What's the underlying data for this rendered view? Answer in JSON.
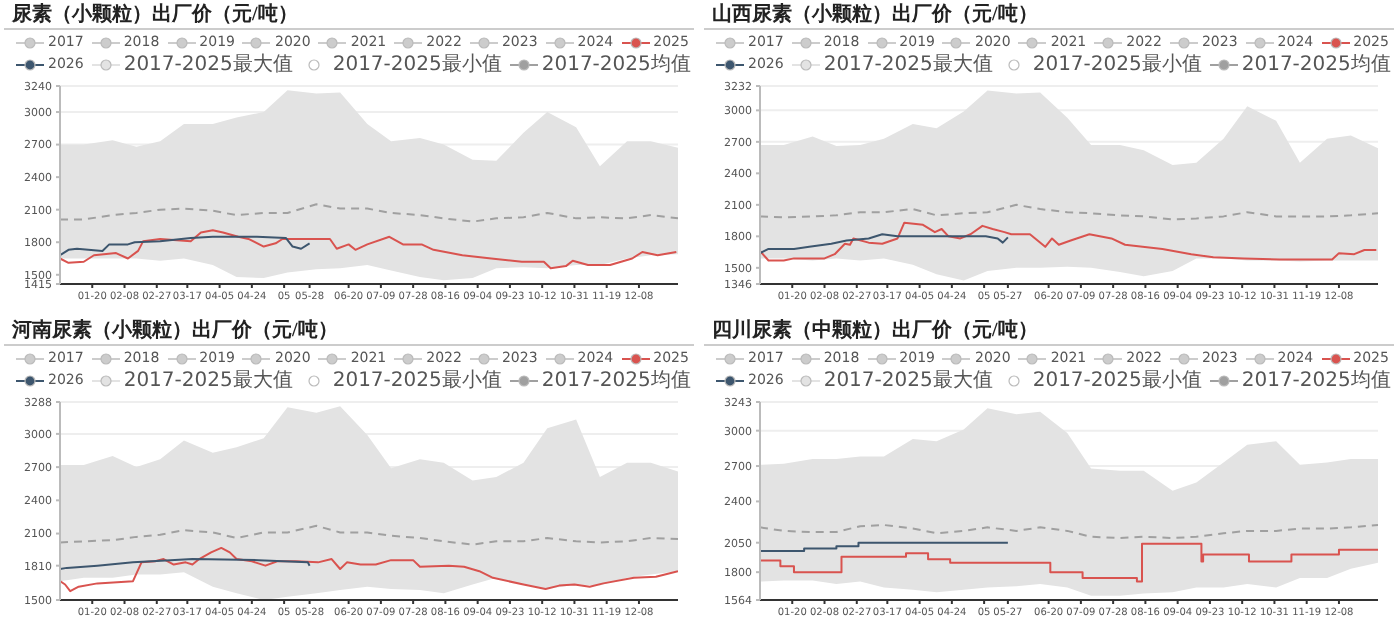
{
  "chart_data": [
    {
      "type": "line",
      "title": "尿素（小颗粒）出厂价（元/吨）",
      "legend": "top left",
      "grid": "y",
      "xlim": [
        "--01-01",
        "--12-31"
      ],
      "ylim": [
        1415,
        3240
      ],
      "yticks": [
        1415,
        1500,
        1800,
        2100,
        2400,
        2700,
        3000,
        3240
      ],
      "xticks": [
        {
          "value": "--01-20",
          "label": "01-20"
        },
        {
          "value": "--02-08",
          "label": "02-08"
        },
        {
          "value": "--02-27",
          "label": "02-27"
        },
        {
          "value": "--03-17",
          "label": "03-17"
        },
        {
          "value": "--04-05",
          "label": "04-05"
        },
        {
          "value": "--04-24",
          "label": "04-24"
        },
        {
          "value": "--05-13",
          "label": "05"
        },
        {
          "value": "--05-28",
          "label": "05-28"
        },
        {
          "value": "--06-20",
          "label": "06-20"
        },
        {
          "value": "--07-09",
          "label": "07-09"
        },
        {
          "value": "--07-28",
          "label": "07-28"
        },
        {
          "value": "--08-16",
          "label": "08-16"
        },
        {
          "value": "--09-04",
          "label": "09-04"
        },
        {
          "value": "--09-23",
          "label": "09-23"
        },
        {
          "value": "--10-12",
          "label": "10-12"
        },
        {
          "value": "--10-31",
          "label": "10-31"
        },
        {
          "value": "--11-19",
          "label": "11-19"
        },
        {
          "value": "--12-08",
          "label": "12-08"
        }
      ],
      "series": [
        {
          "name": "2017",
          "color": "#cccccc"
        },
        {
          "name": "2018",
          "color": "#cccccc"
        },
        {
          "name": "2019",
          "color": "#cccccc"
        },
        {
          "name": "2020",
          "color": "#cccccc"
        },
        {
          "name": "2021",
          "color": "#cccccc"
        },
        {
          "name": "2022",
          "color": "#cccccc"
        },
        {
          "name": "2023",
          "color": "#cccccc"
        },
        {
          "name": "2024",
          "color": "#cccccc"
        },
        {
          "name": "2025",
          "color": "#d9534f",
          "x": [
            "--01-01",
            "--01-06",
            "--01-15",
            "--01-21",
            "--02-03",
            "--02-10",
            "--02-16",
            "--02-19",
            "--03-01",
            "--03-19",
            "--03-25",
            "--04-01",
            "--04-07",
            "--04-16",
            "--04-22",
            "--05-01",
            "--05-08",
            "--05-12",
            "--06-09",
            "--06-13",
            "--06-20",
            "--06-24",
            "--07-01",
            "--07-14",
            "--07-22",
            "--08-02",
            "--08-09",
            "--08-26",
            "--09-12",
            "--09-30",
            "--10-13",
            "--10-17",
            "--10-26",
            "--10-30",
            "--11-08",
            "--11-21",
            "--12-04",
            "--12-10",
            "--12-19",
            "--12-30"
          ],
          "values": [
            1650,
            1610,
            1620,
            1680,
            1700,
            1650,
            1720,
            1810,
            1830,
            1810,
            1890,
            1910,
            1890,
            1850,
            1830,
            1760,
            1790,
            1830,
            1830,
            1740,
            1780,
            1730,
            1780,
            1850,
            1780,
            1780,
            1730,
            1680,
            1650,
            1620,
            1620,
            1560,
            1580,
            1630,
            1590,
            1590,
            1650,
            1710,
            1680,
            1710
          ]
        },
        {
          "name": "2026",
          "color": "#3d566e",
          "x": [
            "--01-01",
            "--01-06",
            "--01-11",
            "--01-26",
            "--01-30",
            "--02-10",
            "--02-14",
            "--03-01",
            "--03-19",
            "--04-01",
            "--04-27",
            "--05-14",
            "--05-18",
            "--05-23",
            "--05-28"
          ],
          "values": [
            1680,
            1730,
            1740,
            1720,
            1780,
            1780,
            1800,
            1810,
            1840,
            1850,
            1850,
            1840,
            1760,
            1740,
            1790
          ]
        },
        {
          "name": "2017-2025最大值",
          "type": "area",
          "color": "#e3e3e3",
          "x": [
            "--01-01",
            "--01-15",
            "--02-01",
            "--02-15",
            "--03-01",
            "--03-15",
            "--04-01",
            "--04-15",
            "--05-01",
            "--05-15",
            "--06-01",
            "--06-15",
            "--07-01",
            "--07-15",
            "--08-01",
            "--08-15",
            "--09-01",
            "--09-15",
            "--10-01",
            "--10-15",
            "--11-01",
            "--11-15",
            "--12-01",
            "--12-15",
            "--12-31"
          ],
          "values": [
            2700,
            2700,
            2740,
            2680,
            2730,
            2890,
            2890,
            2950,
            3000,
            3200,
            3170,
            3180,
            2890,
            2730,
            2760,
            2700,
            2560,
            2550,
            2810,
            3000,
            2860,
            2500,
            2730,
            2730,
            2670
          ]
        },
        {
          "name": "2017-2025最小值",
          "type": "area",
          "color": "#ffffff",
          "x": [
            "--01-01",
            "--01-15",
            "--02-01",
            "--02-15",
            "--03-01",
            "--03-15",
            "--04-01",
            "--04-15",
            "--05-01",
            "--05-15",
            "--06-01",
            "--06-15",
            "--07-01",
            "--07-15",
            "--08-01",
            "--08-15",
            "--09-01",
            "--09-15",
            "--10-01",
            "--10-15",
            "--11-01",
            "--11-15",
            "--12-01",
            "--12-15",
            "--12-31"
          ],
          "values": [
            1650,
            1650,
            1650,
            1650,
            1630,
            1650,
            1590,
            1480,
            1470,
            1520,
            1550,
            1560,
            1590,
            1540,
            1480,
            1450,
            1470,
            1560,
            1570,
            1560,
            1590,
            1590,
            1650,
            1680,
            1690
          ]
        },
        {
          "name": "2017-2025均值",
          "color": "#a0a0a0",
          "line_style": "dashed",
          "x": [
            "--01-01",
            "--01-15",
            "--02-01",
            "--02-15",
            "--03-01",
            "--03-15",
            "--04-01",
            "--04-15",
            "--05-01",
            "--05-15",
            "--06-01",
            "--06-15",
            "--07-01",
            "--07-15",
            "--08-01",
            "--08-15",
            "--09-01",
            "--09-15",
            "--10-01",
            "--10-15",
            "--11-01",
            "--11-15",
            "--12-01",
            "--12-15",
            "--12-31"
          ],
          "values": [
            2010,
            2010,
            2050,
            2070,
            2100,
            2110,
            2090,
            2050,
            2070,
            2070,
            2150,
            2110,
            2110,
            2070,
            2050,
            2020,
            1990,
            2020,
            2030,
            2070,
            2020,
            2030,
            2020,
            2050,
            2020
          ]
        }
      ]
    },
    {
      "type": "line",
      "title": "山西尿素（小颗粒）出厂价（元/吨）",
      "legend": "top left",
      "grid": "y",
      "xlim": [
        "--01-01",
        "--12-31"
      ],
      "ylim": [
        1346,
        3232
      ],
      "yticks": [
        1346,
        1500,
        1800,
        2100,
        2400,
        2700,
        3000,
        3232
      ],
      "xticks": [
        {
          "value": "--01-20",
          "label": "01-20"
        },
        {
          "value": "--02-08",
          "label": "02-08"
        },
        {
          "value": "--02-27",
          "label": "02-27"
        },
        {
          "value": "--03-17",
          "label": "03-17"
        },
        {
          "value": "--04-05",
          "label": "04-05"
        },
        {
          "value": "--04-24",
          "label": "04-24"
        },
        {
          "value": "--05-13",
          "label": "05"
        },
        {
          "value": "--05-27",
          "label": "05-27"
        },
        {
          "value": "--06-20",
          "label": "06-20"
        },
        {
          "value": "--07-09",
          "label": "07-09"
        },
        {
          "value": "--07-28",
          "label": "07-28"
        },
        {
          "value": "--08-16",
          "label": "08-16"
        },
        {
          "value": "--09-04",
          "label": "09-04"
        },
        {
          "value": "--09-23",
          "label": "09-23"
        },
        {
          "value": "--10-12",
          "label": "10-12"
        },
        {
          "value": "--10-31",
          "label": "10-31"
        },
        {
          "value": "--11-19",
          "label": "11-19"
        },
        {
          "value": "--12-08",
          "label": "12-08"
        }
      ],
      "series": [
        {
          "name": "2017",
          "color": "#cccccc"
        },
        {
          "name": "2018",
          "color": "#cccccc"
        },
        {
          "name": "2019",
          "color": "#cccccc"
        },
        {
          "name": "2020",
          "color": "#cccccc"
        },
        {
          "name": "2021",
          "color": "#cccccc"
        },
        {
          "name": "2022",
          "color": "#cccccc"
        },
        {
          "name": "2023",
          "color": "#cccccc"
        },
        {
          "name": "2024",
          "color": "#cccccc"
        },
        {
          "name": "2025",
          "color": "#d9534f",
          "x": [
            "--01-01",
            "--01-06",
            "--01-15",
            "--01-21",
            "--02-08",
            "--02-14",
            "--02-20",
            "--02-23",
            "--02-25",
            "--03-06",
            "--03-14",
            "--03-23",
            "--03-27",
            "--04-07",
            "--04-14",
            "--04-18",
            "--04-22",
            "--04-29",
            "--05-05",
            "--05-12",
            "--05-18",
            "--05-25",
            "--05-29",
            "--06-09",
            "--06-18",
            "--06-22",
            "--06-26",
            "--07-03",
            "--07-14",
            "--07-27",
            "--08-04",
            "--08-26",
            "--09-12",
            "--09-25",
            "--10-13",
            "--11-03",
            "--12-04",
            "--12-08",
            "--12-17",
            "--12-23",
            "--12-30"
          ],
          "values": [
            1660,
            1570,
            1570,
            1590,
            1590,
            1630,
            1730,
            1720,
            1780,
            1740,
            1730,
            1780,
            1930,
            1910,
            1840,
            1870,
            1800,
            1780,
            1820,
            1900,
            1870,
            1840,
            1820,
            1820,
            1700,
            1780,
            1720,
            1760,
            1820,
            1780,
            1720,
            1680,
            1630,
            1600,
            1590,
            1580,
            1580,
            1640,
            1630,
            1670,
            1670
          ]
        },
        {
          "name": "2026",
          "color": "#3d566e",
          "x": [
            "--01-01",
            "--01-06",
            "--01-21",
            "--01-30",
            "--02-12",
            "--02-21",
            "--03-06",
            "--03-14",
            "--03-23",
            "--04-09",
            "--05-14",
            "--05-21",
            "--05-24",
            "--05-27"
          ],
          "values": [
            1640,
            1680,
            1680,
            1700,
            1730,
            1760,
            1780,
            1820,
            1800,
            1800,
            1800,
            1780,
            1740,
            1790
          ]
        },
        {
          "name": "2017-2025最大值",
          "type": "area",
          "color": "#e3e3e3",
          "x": [
            "--01-01",
            "--01-15",
            "--02-01",
            "--02-15",
            "--03-01",
            "--03-15",
            "--04-01",
            "--04-15",
            "--05-01",
            "--05-15",
            "--06-01",
            "--06-15",
            "--07-01",
            "--07-15",
            "--08-01",
            "--08-15",
            "--09-01",
            "--09-15",
            "--10-01",
            "--10-15",
            "--11-01",
            "--11-15",
            "--12-01",
            "--12-15",
            "--12-31"
          ],
          "values": [
            2670,
            2670,
            2750,
            2660,
            2670,
            2730,
            2870,
            2830,
            2990,
            3190,
            3160,
            3170,
            2930,
            2670,
            2670,
            2620,
            2480,
            2500,
            2730,
            3040,
            2900,
            2500,
            2730,
            2760,
            2640
          ]
        },
        {
          "name": "2017-2025最小值",
          "type": "area",
          "color": "#ffffff",
          "x": [
            "--01-01",
            "--01-15",
            "--02-01",
            "--02-15",
            "--03-01",
            "--03-15",
            "--04-01",
            "--04-15",
            "--05-01",
            "--05-15",
            "--06-01",
            "--06-15",
            "--07-01",
            "--07-15",
            "--08-01",
            "--08-15",
            "--09-01",
            "--09-15",
            "--10-01",
            "--10-15",
            "--11-01",
            "--11-15",
            "--12-01",
            "--12-15",
            "--12-31"
          ],
          "values": [
            1590,
            1590,
            1570,
            1590,
            1570,
            1590,
            1530,
            1440,
            1380,
            1470,
            1500,
            1500,
            1510,
            1500,
            1460,
            1420,
            1470,
            1590,
            1590,
            1570,
            1570,
            1560,
            1570,
            1570,
            1570
          ]
        },
        {
          "name": "2017-2025均值",
          "color": "#a0a0a0",
          "line_style": "dashed",
          "x": [
            "--01-01",
            "--01-15",
            "--02-01",
            "--02-15",
            "--03-01",
            "--03-15",
            "--04-01",
            "--04-15",
            "--05-01",
            "--05-15",
            "--06-01",
            "--06-15",
            "--07-01",
            "--07-15",
            "--08-01",
            "--08-15",
            "--09-01",
            "--09-15",
            "--10-01",
            "--10-15",
            "--11-01",
            "--11-15",
            "--12-01",
            "--12-15",
            "--12-31"
          ],
          "values": [
            1990,
            1980,
            1990,
            2000,
            2030,
            2030,
            2060,
            2000,
            2020,
            2030,
            2100,
            2060,
            2030,
            2020,
            2000,
            1990,
            1960,
            1970,
            1990,
            2030,
            1990,
            1990,
            1990,
            2000,
            2020
          ]
        }
      ]
    },
    {
      "type": "line",
      "title": "河南尿素（小颗粒）出厂价（元/吨）",
      "legend": "top left",
      "grid": "y",
      "xlim": [
        "--01-01",
        "--12-31"
      ],
      "ylim": [
        1500,
        3288
      ],
      "yticks": [
        1500,
        1810,
        2100,
        2400,
        2700,
        3000,
        3288
      ],
      "xticks": [
        {
          "value": "--01-20",
          "label": "01-20"
        },
        {
          "value": "--02-08",
          "label": "02-08"
        },
        {
          "value": "--02-27",
          "label": "02-27"
        },
        {
          "value": "--03-17",
          "label": "03-17"
        },
        {
          "value": "--04-05",
          "label": "04-05"
        },
        {
          "value": "--04-24",
          "label": "04-24"
        },
        {
          "value": "--05-13",
          "label": "05"
        },
        {
          "value": "--05-28",
          "label": "05-28"
        },
        {
          "value": "--06-20",
          "label": "06-20"
        },
        {
          "value": "--07-09",
          "label": "07-09"
        },
        {
          "value": "--07-28",
          "label": "07-28"
        },
        {
          "value": "--08-16",
          "label": "08-16"
        },
        {
          "value": "--09-04",
          "label": "09-04"
        },
        {
          "value": "--09-23",
          "label": "09-23"
        },
        {
          "value": "--10-12",
          "label": "10-12"
        },
        {
          "value": "--10-31",
          "label": "10-31"
        },
        {
          "value": "--11-19",
          "label": "11-19"
        },
        {
          "value": "--12-08",
          "label": "12-08"
        }
      ],
      "series": [
        {
          "name": "2017",
          "color": "#cccccc"
        },
        {
          "name": "2018",
          "color": "#cccccc"
        },
        {
          "name": "2019",
          "color": "#cccccc"
        },
        {
          "name": "2020",
          "color": "#cccccc"
        },
        {
          "name": "2021",
          "color": "#cccccc"
        },
        {
          "name": "2022",
          "color": "#cccccc"
        },
        {
          "name": "2023",
          "color": "#cccccc"
        },
        {
          "name": "2024",
          "color": "#cccccc"
        },
        {
          "name": "2025",
          "color": "#d9534f",
          "x": [
            "--01-01",
            "--01-04",
            "--01-07",
            "--01-12",
            "--01-23",
            "--02-13",
            "--02-18",
            "--02-26",
            "--03-03",
            "--03-09",
            "--03-16",
            "--03-20",
            "--03-24",
            "--03-31",
            "--04-06",
            "--04-11",
            "--04-15",
            "--04-24",
            "--05-02",
            "--05-09",
            "--05-20",
            "--06-02",
            "--06-10",
            "--06-15",
            "--06-19",
            "--06-27",
            "--07-06",
            "--07-15",
            "--07-28",
            "--08-01",
            "--08-18",
            "--08-27",
            "--09-05",
            "--09-13",
            "--10-01",
            "--10-14",
            "--10-22",
            "--10-31",
            "--11-09",
            "--11-17",
            "--12-05",
            "--12-18",
            "--12-31"
          ],
          "values": [
            1670,
            1640,
            1580,
            1620,
            1650,
            1670,
            1840,
            1850,
            1870,
            1820,
            1840,
            1820,
            1870,
            1930,
            1970,
            1930,
            1870,
            1850,
            1810,
            1850,
            1850,
            1840,
            1870,
            1780,
            1840,
            1820,
            1820,
            1860,
            1860,
            1800,
            1810,
            1800,
            1760,
            1700,
            1640,
            1600,
            1630,
            1640,
            1620,
            1650,
            1700,
            1710,
            1760
          ]
        },
        {
          "name": "2026",
          "color": "#3d566e",
          "x": [
            "--01-01",
            "--01-05",
            "--01-23",
            "--02-13",
            "--03-07",
            "--03-20",
            "--04-28",
            "--05-27",
            "--05-28"
          ],
          "values": [
            1780,
            1790,
            1810,
            1840,
            1860,
            1870,
            1860,
            1840,
            1810
          ]
        },
        {
          "name": "2017-2025最大值",
          "type": "area",
          "color": "#e3e3e3",
          "x": [
            "--01-01",
            "--01-15",
            "--02-01",
            "--02-15",
            "--03-01",
            "--03-15",
            "--04-01",
            "--04-15",
            "--05-01",
            "--05-15",
            "--06-01",
            "--06-15",
            "--07-01",
            "--07-15",
            "--08-01",
            "--08-15",
            "--09-01",
            "--09-15",
            "--10-01",
            "--10-15",
            "--11-01",
            "--11-15",
            "--12-01",
            "--12-15",
            "--12-31"
          ],
          "values": [
            2720,
            2720,
            2800,
            2700,
            2770,
            2940,
            2830,
            2880,
            2960,
            3240,
            3190,
            3250,
            2990,
            2690,
            2770,
            2740,
            2580,
            2610,
            2740,
            3050,
            3130,
            2610,
            2740,
            2740,
            2660
          ]
        },
        {
          "name": "2017-2025最小值",
          "type": "area",
          "color": "#ffffff",
          "x": [
            "--01-01",
            "--01-15",
            "--02-01",
            "--02-15",
            "--03-01",
            "--03-15",
            "--04-01",
            "--04-15",
            "--05-01",
            "--05-15",
            "--06-01",
            "--06-15",
            "--07-01",
            "--07-15",
            "--08-01",
            "--08-15",
            "--09-01",
            "--09-15",
            "--10-01",
            "--10-15",
            "--11-01",
            "--11-15",
            "--12-01",
            "--12-15",
            "--12-31"
          ],
          "values": [
            1670,
            1700,
            1700,
            1730,
            1730,
            1750,
            1620,
            1560,
            1500,
            1530,
            1560,
            1590,
            1620,
            1600,
            1590,
            1560,
            1640,
            1700,
            1640,
            1600,
            1640,
            1630,
            1700,
            1730,
            1760
          ]
        },
        {
          "name": "2017-2025均值",
          "color": "#a0a0a0",
          "line_style": "dashed",
          "x": [
            "--01-01",
            "--01-15",
            "--02-01",
            "--02-15",
            "--03-01",
            "--03-15",
            "--04-01",
            "--04-15",
            "--05-01",
            "--05-15",
            "--06-01",
            "--06-15",
            "--07-01",
            "--07-15",
            "--08-01",
            "--08-15",
            "--09-01",
            "--09-15",
            "--10-01",
            "--10-15",
            "--11-01",
            "--11-15",
            "--12-01",
            "--12-15",
            "--12-31"
          ],
          "values": [
            2020,
            2030,
            2040,
            2070,
            2090,
            2130,
            2110,
            2060,
            2110,
            2110,
            2170,
            2110,
            2110,
            2080,
            2060,
            2030,
            2000,
            2030,
            2030,
            2060,
            2030,
            2020,
            2030,
            2060,
            2050
          ]
        }
      ]
    },
    {
      "type": "line",
      "title": "四川尿素（中颗粒）出厂价（元/吨）",
      "legend": "top left",
      "grid": "y",
      "xlim": [
        "--01-01",
        "--12-31"
      ],
      "ylim": [
        1564,
        3243
      ],
      "yticks": [
        1564,
        1800,
        2050,
        2400,
        2700,
        3000,
        3243
      ],
      "xticks": [
        {
          "value": "--01-20",
          "label": "01-20"
        },
        {
          "value": "--02-08",
          "label": "02-08"
        },
        {
          "value": "--02-27",
          "label": "02-27"
        },
        {
          "value": "--03-17",
          "label": "03-17"
        },
        {
          "value": "--04-05",
          "label": "04-05"
        },
        {
          "value": "--04-24",
          "label": "04-24"
        },
        {
          "value": "--05-13",
          "label": "05"
        },
        {
          "value": "--05-27",
          "label": "05-27"
        },
        {
          "value": "--06-20",
          "label": "06-20"
        },
        {
          "value": "--07-09",
          "label": "07-09"
        },
        {
          "value": "--07-28",
          "label": "07-28"
        },
        {
          "value": "--08-16",
          "label": "08-16"
        },
        {
          "value": "--09-04",
          "label": "09-04"
        },
        {
          "value": "--09-23",
          "label": "09-23"
        },
        {
          "value": "--10-12",
          "label": "10-12"
        },
        {
          "value": "--10-31",
          "label": "10-31"
        },
        {
          "value": "--11-19",
          "label": "11-19"
        },
        {
          "value": "--12-08",
          "label": "12-08"
        }
      ],
      "series": [
        {
          "name": "2017",
          "color": "#cccccc"
        },
        {
          "name": "2018",
          "color": "#cccccc"
        },
        {
          "name": "2019",
          "color": "#cccccc"
        },
        {
          "name": "2020",
          "color": "#cccccc"
        },
        {
          "name": "2021",
          "color": "#cccccc"
        },
        {
          "name": "2022",
          "color": "#cccccc"
        },
        {
          "name": "2023",
          "color": "#cccccc"
        },
        {
          "name": "2024",
          "color": "#cccccc"
        },
        {
          "name": "2025",
          "type": "step",
          "color": "#d9534f",
          "x": [
            "--01-01",
            "--01-13",
            "--01-21",
            "--02-18",
            "--03-28",
            "--04-10",
            "--04-23",
            "--06-21",
            "--07-10",
            "--08-11",
            "--08-14",
            "--09-18",
            "--09-19",
            "--10-16",
            "--11-10",
            "--12-08",
            "--12-31"
          ],
          "values": [
            1900,
            1850,
            1800,
            1930,
            1960,
            1910,
            1880,
            1800,
            1750,
            1720,
            2040,
            1890,
            1950,
            1890,
            1950,
            1990,
            1990
          ]
        },
        {
          "name": "2026",
          "type": "step",
          "color": "#3d566e",
          "x": [
            "--01-01",
            "--01-27",
            "--02-15",
            "--02-28",
            "--05-27"
          ],
          "values": [
            1980,
            2000,
            2020,
            2050,
            2050
          ]
        },
        {
          "name": "2017-2025最大值",
          "type": "area",
          "color": "#e3e3e3",
          "x": [
            "--01-01",
            "--01-15",
            "--02-01",
            "--02-15",
            "--03-01",
            "--03-15",
            "--04-01",
            "--04-15",
            "--05-01",
            "--05-15",
            "--06-01",
            "--06-15",
            "--07-01",
            "--07-15",
            "--08-01",
            "--08-15",
            "--09-01",
            "--09-15",
            "--10-01",
            "--10-15",
            "--11-01",
            "--11-15",
            "--12-01",
            "--12-15",
            "--12-31"
          ],
          "values": [
            2710,
            2720,
            2760,
            2760,
            2780,
            2780,
            2930,
            2910,
            3010,
            3190,
            3140,
            3160,
            2980,
            2680,
            2660,
            2660,
            2490,
            2560,
            2730,
            2880,
            2910,
            2710,
            2730,
            2760,
            2760
          ]
        },
        {
          "name": "2017-2025最小值",
          "type": "area",
          "color": "#ffffff",
          "x": [
            "--01-01",
            "--01-15",
            "--02-01",
            "--02-15",
            "--03-01",
            "--03-15",
            "--04-01",
            "--04-15",
            "--05-01",
            "--05-15",
            "--06-01",
            "--06-15",
            "--07-01",
            "--07-15",
            "--08-01",
            "--08-15",
            "--09-01",
            "--09-15",
            "--10-01",
            "--10-15",
            "--11-01",
            "--11-15",
            "--12-01",
            "--12-15",
            "--12-31"
          ],
          "values": [
            1720,
            1730,
            1730,
            1700,
            1720,
            1670,
            1650,
            1630,
            1650,
            1670,
            1680,
            1700,
            1670,
            1600,
            1600,
            1620,
            1630,
            1670,
            1670,
            1700,
            1670,
            1750,
            1750,
            1830,
            1880
          ]
        },
        {
          "name": "2017-2025均值",
          "color": "#a0a0a0",
          "line_style": "dashed",
          "x": [
            "--01-01",
            "--01-15",
            "--02-01",
            "--02-15",
            "--03-01",
            "--03-15",
            "--04-01",
            "--04-15",
            "--05-01",
            "--05-15",
            "--06-01",
            "--06-15",
            "--07-01",
            "--07-15",
            "--08-01",
            "--08-15",
            "--09-01",
            "--09-15",
            "--10-01",
            "--10-15",
            "--11-01",
            "--11-15",
            "--12-01",
            "--12-15",
            "--12-31"
          ],
          "values": [
            2180,
            2150,
            2140,
            2140,
            2190,
            2200,
            2170,
            2130,
            2150,
            2180,
            2150,
            2180,
            2150,
            2100,
            2090,
            2100,
            2090,
            2100,
            2130,
            2150,
            2150,
            2170,
            2170,
            2180,
            2200
          ]
        }
      ]
    }
  ]
}
